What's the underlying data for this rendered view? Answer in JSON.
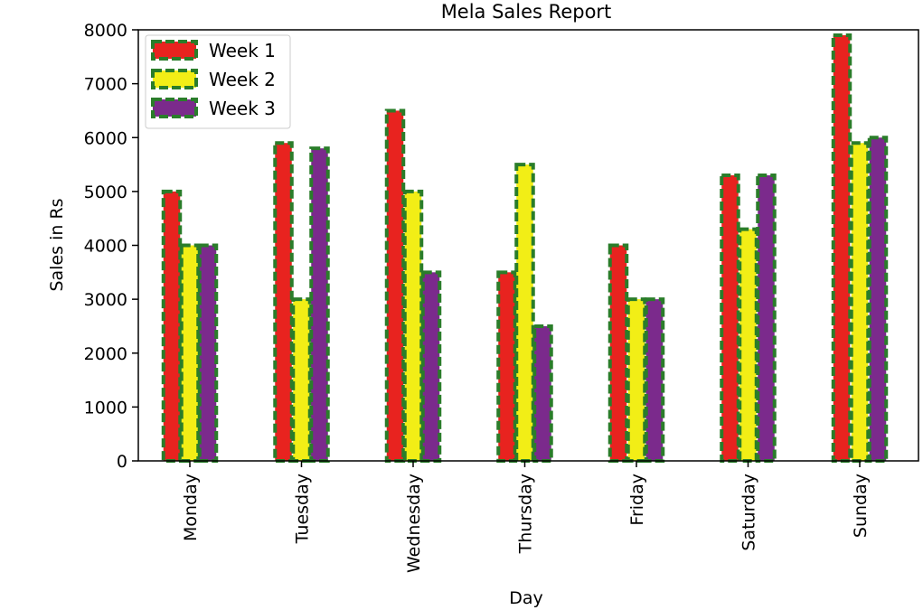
{
  "chart_data": {
    "type": "bar",
    "title": "Mela Sales Report",
    "xlabel": "Day",
    "ylabel": "Sales in Rs",
    "categories": [
      "Monday",
      "Tuesday",
      "Wednesday",
      "Thursday",
      "Friday",
      "Saturday",
      "Sunday"
    ],
    "series": [
      {
        "name": "Week 1",
        "color": "#e8231f",
        "values": [
          5000,
          5900,
          6500,
          3500,
          4000,
          5300,
          7900
        ]
      },
      {
        "name": "Week 2",
        "color": "#f2ee16",
        "values": [
          4000,
          3000,
          5000,
          5500,
          3000,
          4300,
          5900
        ]
      },
      {
        "name": "Week 3",
        "color": "#7b2a8c",
        "values": [
          4000,
          5800,
          3500,
          2500,
          3000,
          5300,
          6000
        ]
      }
    ],
    "edge_color": "#2a7d2a",
    "edge_style": "dashed",
    "ylim": [
      0,
      8000
    ],
    "yticks": [
      0,
      1000,
      2000,
      3000,
      4000,
      5000,
      6000,
      7000,
      8000
    ],
    "xtick_rotation": 90,
    "legend_position": "top-left",
    "grid": false
  }
}
